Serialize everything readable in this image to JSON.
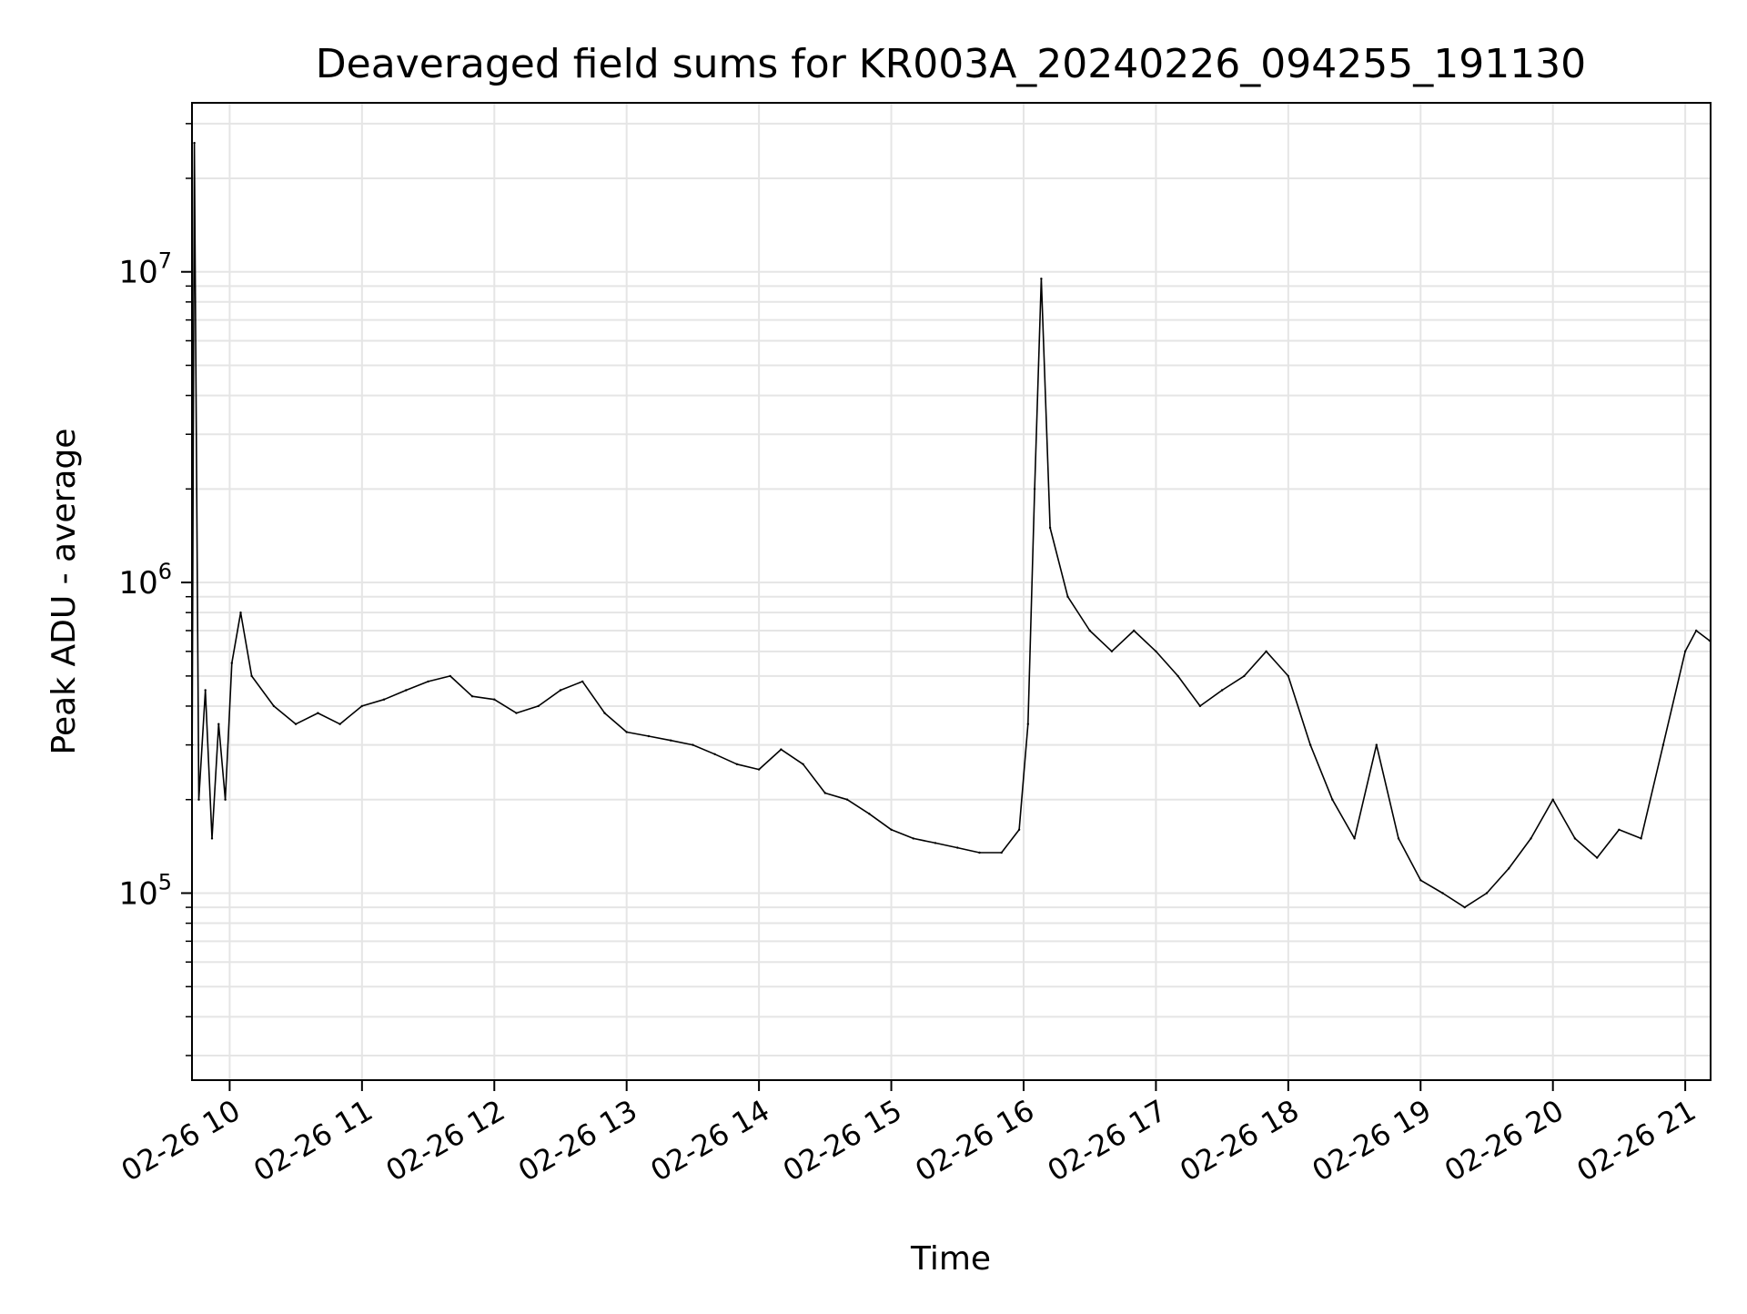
{
  "chart_data": {
    "type": "line",
    "title": "Deaveraged field sums for KR003A_20240226_094255_191130",
    "xlabel": "Time",
    "ylabel": "Peak ADU - average",
    "y_scale": "log",
    "ylim": [
      25000,
      35000000
    ],
    "xlim": [
      "2024-02-26T09:42:55",
      "2024-02-26T21:11:30"
    ],
    "grid": true,
    "grid_minor": true,
    "legend": "none",
    "line_color": "#000000",
    "grid_color": "#e5e5e5",
    "x_ticks": [
      {
        "t": "2024-02-26T10:00:00",
        "label": "02-26 10"
      },
      {
        "t": "2024-02-26T11:00:00",
        "label": "02-26 11"
      },
      {
        "t": "2024-02-26T12:00:00",
        "label": "02-26 12"
      },
      {
        "t": "2024-02-26T13:00:00",
        "label": "02-26 13"
      },
      {
        "t": "2024-02-26T14:00:00",
        "label": "02-26 14"
      },
      {
        "t": "2024-02-26T15:00:00",
        "label": "02-26 15"
      },
      {
        "t": "2024-02-26T16:00:00",
        "label": "02-26 16"
      },
      {
        "t": "2024-02-26T17:00:00",
        "label": "02-26 17"
      },
      {
        "t": "2024-02-26T18:00:00",
        "label": "02-26 18"
      },
      {
        "t": "2024-02-26T19:00:00",
        "label": "02-26 19"
      },
      {
        "t": "2024-02-26T20:00:00",
        "label": "02-26 20"
      },
      {
        "t": "2024-02-26T21:00:00",
        "label": "02-26 21"
      }
    ],
    "y_ticks": [
      {
        "value": 100000,
        "base": "10",
        "exp": "5"
      },
      {
        "value": 1000000,
        "base": "10",
        "exp": "6"
      },
      {
        "value": 10000000,
        "base": "10",
        "exp": "7"
      }
    ],
    "series": [
      {
        "name": "",
        "color": "#000000",
        "x": [
          "2024-02-26T09:43:00",
          "2024-02-26T09:44:00",
          "2024-02-26T09:46:00",
          "2024-02-26T09:49:00",
          "2024-02-26T09:52:00",
          "2024-02-26T09:55:00",
          "2024-02-26T09:58:00",
          "2024-02-26T10:01:00",
          "2024-02-26T10:05:00",
          "2024-02-26T10:10:00",
          "2024-02-26T10:20:00",
          "2024-02-26T10:30:00",
          "2024-02-26T10:40:00",
          "2024-02-26T10:50:00",
          "2024-02-26T11:00:00",
          "2024-02-26T11:10:00",
          "2024-02-26T11:20:00",
          "2024-02-26T11:30:00",
          "2024-02-26T11:40:00",
          "2024-02-26T11:50:00",
          "2024-02-26T12:00:00",
          "2024-02-26T12:10:00",
          "2024-02-26T12:20:00",
          "2024-02-26T12:30:00",
          "2024-02-26T12:40:00",
          "2024-02-26T12:50:00",
          "2024-02-26T13:00:00",
          "2024-02-26T13:10:00",
          "2024-02-26T13:20:00",
          "2024-02-26T13:30:00",
          "2024-02-26T13:40:00",
          "2024-02-26T13:50:00",
          "2024-02-26T14:00:00",
          "2024-02-26T14:10:00",
          "2024-02-26T14:20:00",
          "2024-02-26T14:30:00",
          "2024-02-26T14:40:00",
          "2024-02-26T14:50:00",
          "2024-02-26T15:00:00",
          "2024-02-26T15:10:00",
          "2024-02-26T15:20:00",
          "2024-02-26T15:30:00",
          "2024-02-26T15:40:00",
          "2024-02-26T15:50:00",
          "2024-02-26T15:58:00",
          "2024-02-26T16:02:00",
          "2024-02-26T16:05:00",
          "2024-02-26T16:08:00",
          "2024-02-26T16:12:00",
          "2024-02-26T16:20:00",
          "2024-02-26T16:30:00",
          "2024-02-26T16:40:00",
          "2024-02-26T16:50:00",
          "2024-02-26T17:00:00",
          "2024-02-26T17:10:00",
          "2024-02-26T17:20:00",
          "2024-02-26T17:30:00",
          "2024-02-26T17:40:00",
          "2024-02-26T17:50:00",
          "2024-02-26T18:00:00",
          "2024-02-26T18:10:00",
          "2024-02-26T18:20:00",
          "2024-02-26T18:30:00",
          "2024-02-26T18:40:00",
          "2024-02-26T18:50:00",
          "2024-02-26T19:00:00",
          "2024-02-26T19:10:00",
          "2024-02-26T19:20:00",
          "2024-02-26T19:30:00",
          "2024-02-26T19:40:00",
          "2024-02-26T19:50:00",
          "2024-02-26T20:00:00",
          "2024-02-26T20:10:00",
          "2024-02-26T20:20:00",
          "2024-02-26T20:30:00",
          "2024-02-26T20:40:00",
          "2024-02-26T20:50:00",
          "2024-02-26T21:00:00",
          "2024-02-26T21:05:00",
          "2024-02-26T21:11:00"
        ],
        "y": [
          300000,
          26000000,
          200000,
          450000,
          150000,
          350000,
          200000,
          550000,
          800000,
          500000,
          400000,
          350000,
          380000,
          350000,
          400000,
          420000,
          450000,
          480000,
          500000,
          430000,
          420000,
          380000,
          400000,
          450000,
          480000,
          380000,
          330000,
          320000,
          310000,
          300000,
          280000,
          260000,
          250000,
          290000,
          260000,
          210000,
          200000,
          180000,
          160000,
          150000,
          145000,
          140000,
          135000,
          135000,
          160000,
          350000,
          2000000,
          9500000,
          1500000,
          900000,
          700000,
          600000,
          700000,
          600000,
          500000,
          400000,
          450000,
          500000,
          600000,
          500000,
          300000,
          200000,
          150000,
          300000,
          150000,
          110000,
          100000,
          90000,
          100000,
          120000,
          150000,
          200000,
          150000,
          130000,
          160000,
          150000,
          300000,
          600000,
          700000,
          650000
        ]
      }
    ]
  }
}
